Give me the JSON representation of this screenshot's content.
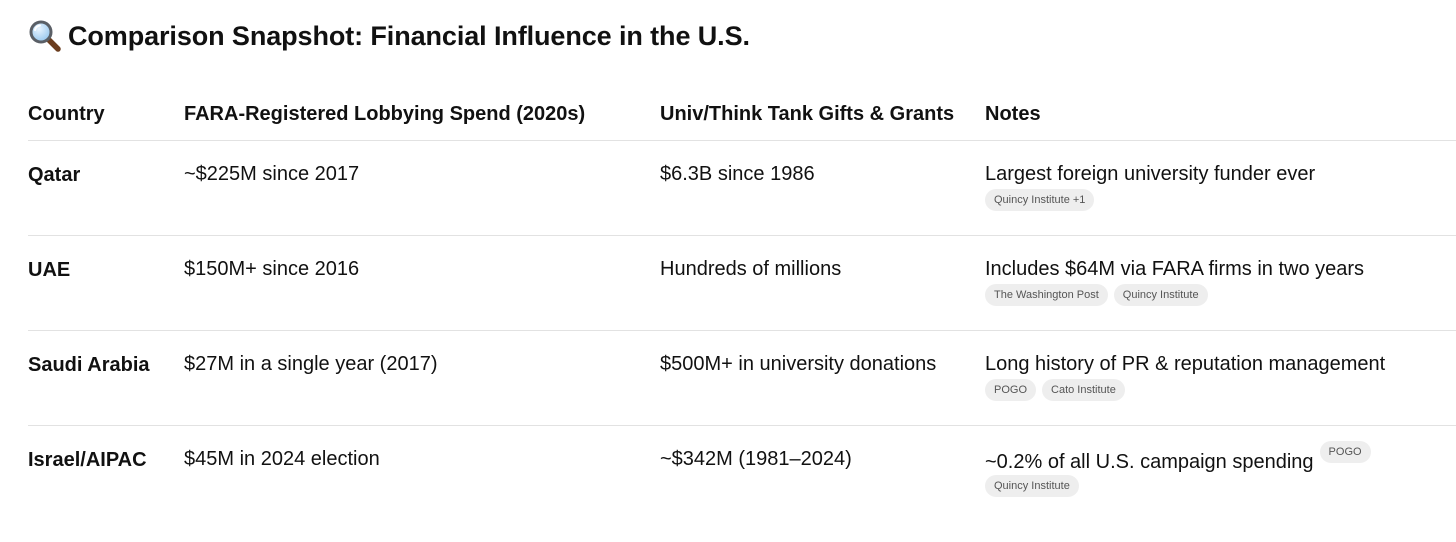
{
  "title": {
    "icon": "magnifying-glass-icon",
    "text": "Comparison Snapshot: Financial Influence in the U.S."
  },
  "table": {
    "headers": [
      "Country",
      "FARA-Registered Lobbying Spend (2020s)",
      "Univ/Think Tank Gifts & Grants",
      "Notes"
    ],
    "rows": [
      {
        "country": "Qatar",
        "lobbying": "~$225M since 2017",
        "gifts": "$6.3B since 1986",
        "note": "Largest foreign university funder ever",
        "sources": [
          "Quincy Institute +1"
        ]
      },
      {
        "country": "UAE",
        "lobbying": "$150M+ since 2016",
        "gifts": "Hundreds of millions",
        "note": "Includes $64M via FARA firms in two years",
        "sources": [
          "The Washington Post",
          "Quincy Institute"
        ]
      },
      {
        "country": "Saudi Arabia",
        "lobbying": "$27M in a single year (2017)",
        "gifts": "$500M+ in university donations",
        "note": "Long history of PR & reputation management",
        "sources": [
          "POGO",
          "Cato Institute"
        ]
      },
      {
        "country": "Israel/AIPAC",
        "lobbying": "$45M in 2024 election",
        "gifts": "~$342M (1981–2024)",
        "note": "~0.2% of all U.S. campaign spending",
        "inline_source": "POGO",
        "sources": [
          "Quincy Institute"
        ]
      }
    ]
  }
}
